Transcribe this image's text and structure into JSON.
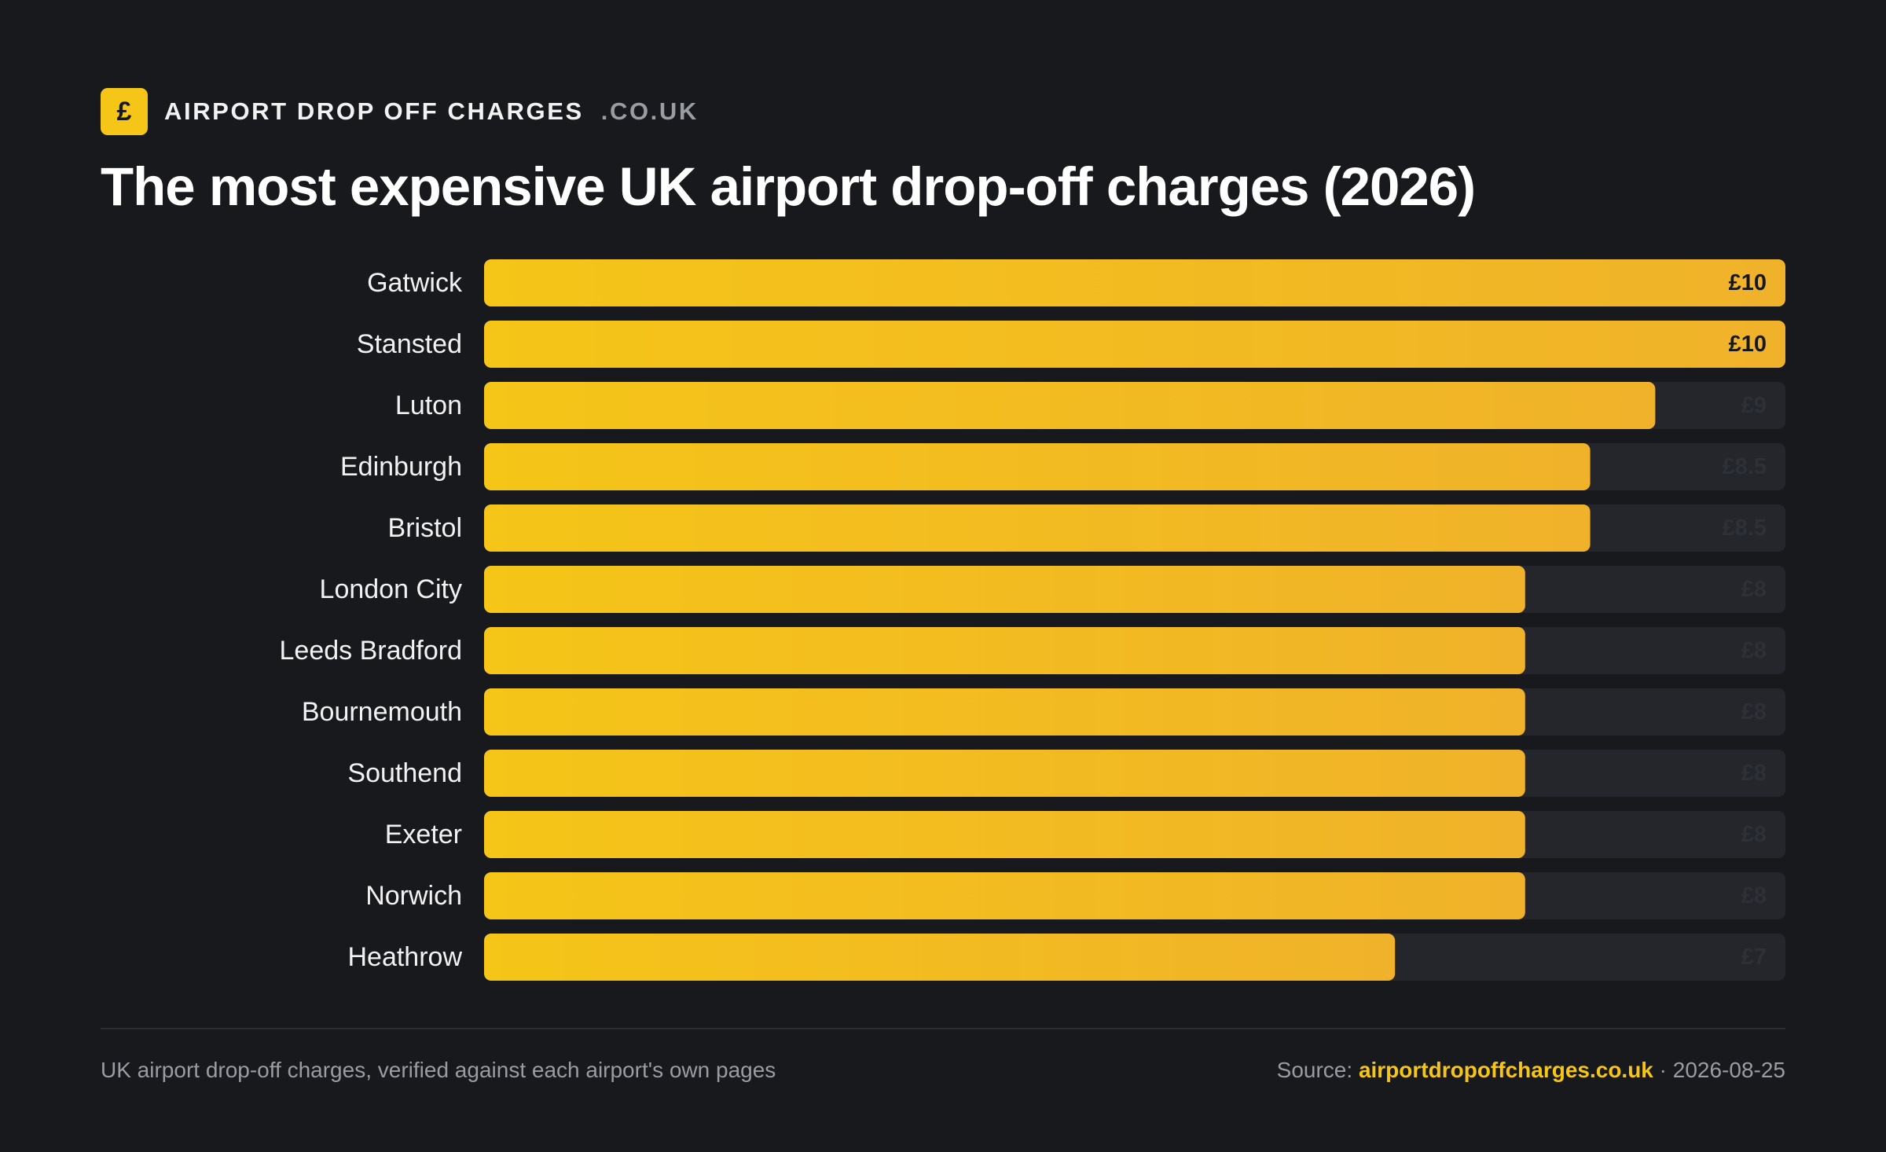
{
  "brand": {
    "badge_symbol": "£",
    "name": "AIRPORT DROP OFF CHARGES",
    "tld": ".CO.UK"
  },
  "title": "The most expensive UK airport drop-off charges (2026)",
  "chart_data": {
    "type": "bar",
    "orientation": "horizontal",
    "categories": [
      "Gatwick",
      "Stansted",
      "Luton",
      "Edinburgh",
      "Bristol",
      "London City",
      "Leeds Bradford",
      "Bournemouth",
      "Southend",
      "Exeter",
      "Norwich",
      "Heathrow"
    ],
    "values": [
      10,
      10,
      9,
      8.5,
      8.5,
      8,
      8,
      8,
      8,
      8,
      8,
      7
    ],
    "value_labels": [
      "£10",
      "£10",
      "£9",
      "£8.5",
      "£8.5",
      "£8",
      "£8",
      "£8",
      "£8",
      "£8",
      "£8",
      "£7"
    ],
    "xlim": [
      0,
      10
    ],
    "grid": false,
    "legend": "none",
    "colors": {
      "bar_start": "#f5c518",
      "bar_end": "#f0b22a",
      "track": "#24262c",
      "label": "#f2f2f2",
      "value_on_bar": "#16171b",
      "value_on_track": "#2e3037"
    }
  },
  "footer": {
    "note": "UK airport drop-off charges, verified against each airport's own pages",
    "source_prefix": "Source: ",
    "source_link": "airportdropoffcharges.co.uk",
    "separator": " · ",
    "date": "2026-08-25"
  }
}
